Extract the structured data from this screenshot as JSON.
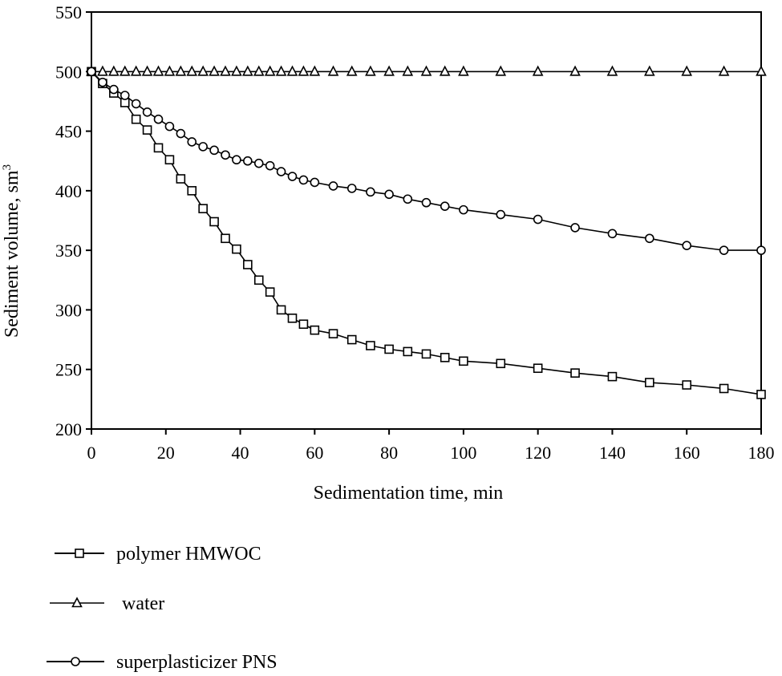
{
  "chart_data": {
    "type": "line",
    "xlabel": "Sedimentation time, min",
    "ylabel": "Sediment volume, sm",
    "ylabel_superscript": "3",
    "xlim": [
      0,
      180
    ],
    "ylim": [
      200,
      550
    ],
    "x_ticks": [
      "0",
      "20",
      "40",
      "60",
      "80",
      "100",
      "120",
      "140",
      "160",
      "180"
    ],
    "y_ticks": [
      "200",
      "250",
      "300",
      "350",
      "400",
      "450",
      "500",
      "550"
    ],
    "grid": false,
    "legend_position": "below",
    "series": [
      {
        "name": "polymer HMWOC",
        "marker": "square",
        "x": [
          0,
          3,
          6,
          9,
          12,
          15,
          18,
          21,
          24,
          27,
          30,
          33,
          36,
          39,
          42,
          45,
          48,
          51,
          54,
          57,
          60,
          65,
          70,
          75,
          80,
          85,
          90,
          95,
          100,
          110,
          120,
          130,
          140,
          150,
          160,
          170,
          180
        ],
        "y": [
          500,
          490,
          482,
          474,
          460,
          451,
          436,
          426,
          410,
          400,
          385,
          374,
          360,
          351,
          338,
          325,
          315,
          300,
          293,
          288,
          283,
          280,
          275,
          270,
          267,
          265,
          263,
          260,
          257,
          255,
          251,
          247,
          244,
          239,
          237,
          234,
          229
        ]
      },
      {
        "name": "water",
        "marker": "triangle",
        "x": [
          0,
          3,
          6,
          9,
          12,
          15,
          18,
          21,
          24,
          27,
          30,
          33,
          36,
          39,
          42,
          45,
          48,
          51,
          54,
          57,
          60,
          65,
          70,
          75,
          80,
          85,
          90,
          95,
          100,
          110,
          120,
          130,
          140,
          150,
          160,
          170,
          180
        ],
        "y": [
          500,
          500,
          500,
          500,
          500,
          500,
          500,
          500,
          500,
          500,
          500,
          500,
          500,
          500,
          500,
          500,
          500,
          500,
          500,
          500,
          500,
          500,
          500,
          500,
          500,
          500,
          500,
          500,
          500,
          500,
          500,
          500,
          500,
          500,
          500,
          500,
          500
        ]
      },
      {
        "name": "superplasticizer PNS",
        "marker": "circle",
        "x": [
          0,
          3,
          6,
          9,
          12,
          15,
          18,
          21,
          24,
          27,
          30,
          33,
          36,
          39,
          42,
          45,
          48,
          51,
          54,
          57,
          60,
          65,
          70,
          75,
          80,
          85,
          90,
          95,
          100,
          110,
          120,
          130,
          140,
          150,
          160,
          170,
          180
        ],
        "y": [
          500,
          491,
          485,
          480,
          473,
          466,
          460,
          454,
          448,
          441,
          437,
          434,
          430,
          426,
          425,
          423,
          421,
          416,
          412,
          409,
          407,
          404,
          402,
          399,
          397,
          393,
          390,
          387,
          384,
          380,
          376,
          369,
          364,
          360,
          354,
          350,
          350
        ]
      }
    ]
  }
}
